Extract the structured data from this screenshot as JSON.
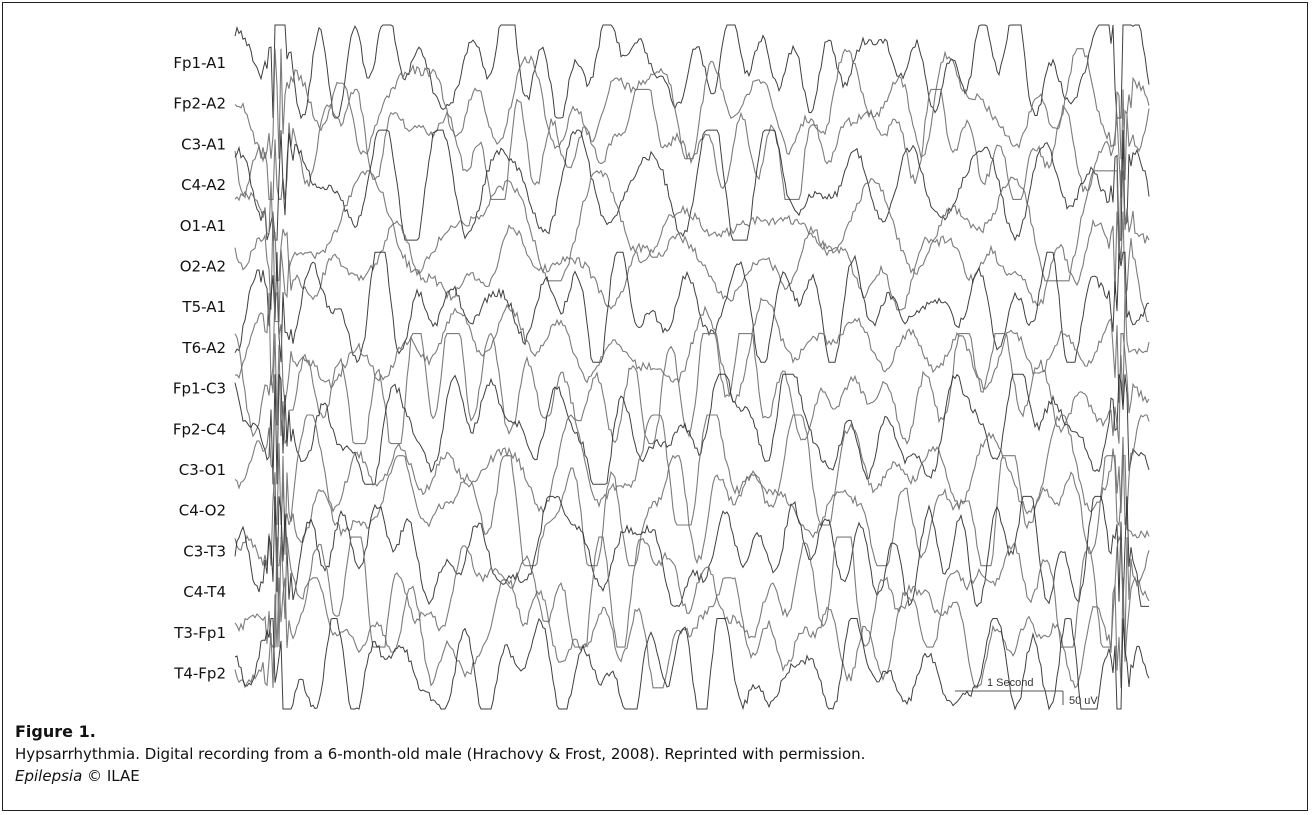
{
  "figure": {
    "channels": [
      "Fp1-A1",
      "Fp2-A2",
      "C3-A1",
      "C4-A2",
      "O1-A1",
      "O2-A2",
      "T5-A1",
      "T6-A2",
      "Fp1-C3",
      "Fp2-C4",
      "C3-O1",
      "C4-O2",
      "C3-T3",
      "C4-T4",
      "T3-Fp1",
      "T4-Fp2"
    ],
    "scale_time_label": "1 Second",
    "scale_amp_label": "50 uV"
  },
  "caption": {
    "title": "Figure 1.",
    "text": "Hypsarrhythmia. Digital recording from a 6-month-old male (Hrachovy & Frost, 2008). Reprinted with permission.",
    "journal": "Epilepsia",
    "copyright_symbol": "©",
    "publisher": "ILAE"
  },
  "colors": {
    "trace": "#6e6e6e",
    "trace_dark": "#2a2a2a",
    "border": "#222222"
  }
}
